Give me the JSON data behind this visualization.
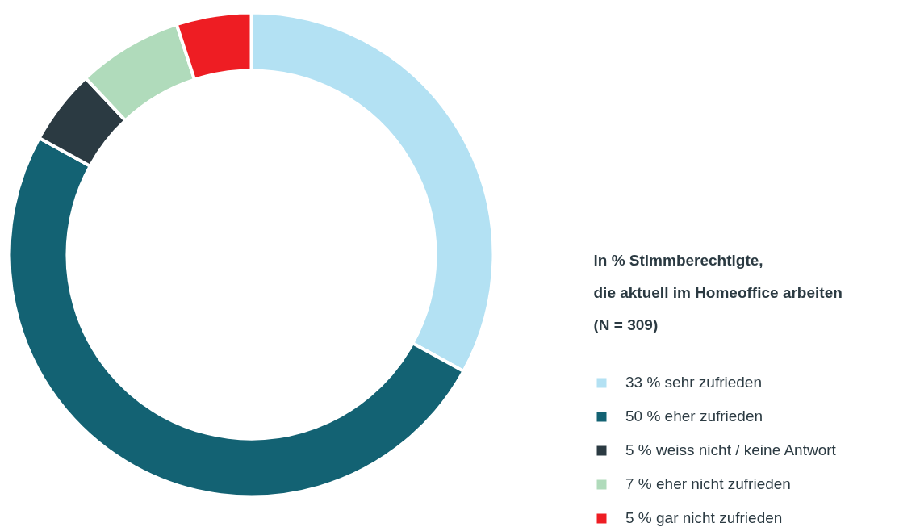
{
  "chart_data": {
    "type": "donut",
    "legend_title": "in % Stimmberechtigte,\ndie aktuell im Homeoffice arbeiten\n(N = 309)",
    "categories": [
      "sehr zufrieden",
      "eher zufrieden",
      "weiss nicht / keine Antwort",
      "eher nicht zufrieden",
      "gar nicht zufrieden"
    ],
    "values": [
      33,
      50,
      5,
      7,
      5
    ],
    "value_labels": [
      "33 %",
      "50 %",
      "5 %",
      "7 %",
      "5 %"
    ],
    "colors": [
      "#b3e1f3",
      "#136273",
      "#2b3a42",
      "#b0dbbb",
      "#ee1d23"
    ],
    "legend": "right"
  }
}
